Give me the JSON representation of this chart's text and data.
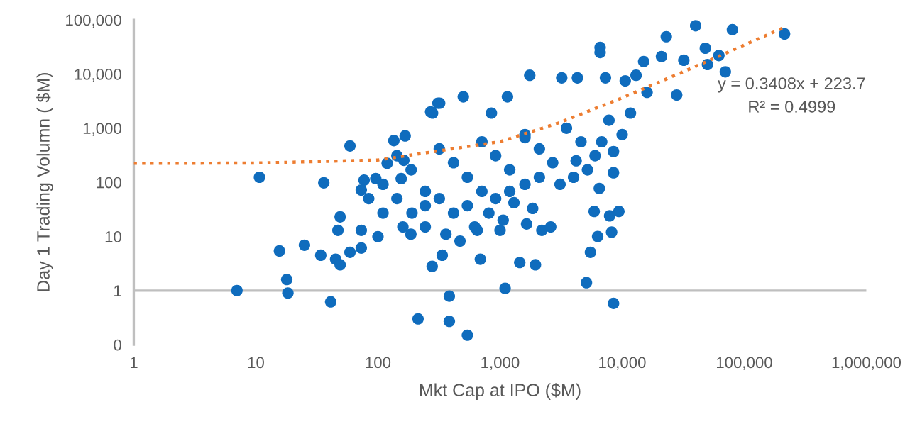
{
  "chart_data": {
    "type": "scatter",
    "xlabel": "Mkt Cap at IPO ($M)",
    "ylabel": "Day 1 Trading Volumn ( $M)",
    "log": "xy",
    "grid": false,
    "legend": false,
    "xlim": [
      1,
      1000000
    ],
    "xticks": [
      1,
      10,
      100,
      {
        "value": 1000,
        "label": "1,000"
      },
      {
        "value": 10000,
        "label": "10,000"
      },
      {
        "value": 100000,
        "label": "100,000"
      },
      {
        "value": 1000000,
        "label": "1,000,000"
      }
    ],
    "ylim": [
      0.1,
      100000
    ],
    "yticks": [
      {
        "value": 0.1,
        "label": "0"
      },
      1,
      10,
      100,
      {
        "value": 1000,
        "label": "1,000"
      },
      {
        "value": 10000,
        "label": "10,000"
      },
      {
        "value": 100000,
        "label": "100,000"
      }
    ],
    "ref_lines": [
      {
        "axis": "y",
        "value": 1,
        "color": "#bfbfbf"
      }
    ],
    "annotations": [
      "y = 0.3408x + 223.7",
      "R² = 0.4999"
    ],
    "series": [
      {
        "color": "#0f6cbd",
        "marker": "circle",
        "x": [
          7.0,
          15.6,
          17.9,
          18.3,
          25,
          34,
          41,
          45,
          49,
          47,
          49,
          59,
          73,
          73,
          100,
          186,
          213,
          278,
          336,
          384,
          384,
          540,
          690,
          1100,
          1450,
          1950,
          5100,
          5500,
          6300,
          8500,
          8200,
          9400,
          7900,
          5900,
          1000,
          1650,
          2200,
          2600,
          470,
          650,
          1850,
          214000,
          80000,
          40000,
          23000,
          48000,
          62000,
          50000,
          70000,
          32000,
          21000,
          15000,
          6600,
          6600,
          28000,
          13000,
          10600,
          7300,
          4300,
          3200,
          1750,
          500,
          320,
          280,
          16000,
          8500,
          8500,
          6500,
          1150,
          850,
          1600,
          4200,
          1300,
          10.7,
          36,
          59,
          135,
          167,
          270,
          310,
          77,
          96,
          73,
          119,
          163,
          155,
          143,
          187,
          244,
          318,
          416,
          540,
          710,
          920,
          1200,
          1600,
          2100,
          2700,
          3500,
          4600,
          6000,
          7800,
          244,
          318,
          416,
          190,
          143,
          110,
          110,
          84,
          540,
          710,
          920,
          1200,
          1600,
          2100,
          3100,
          4000,
          5200,
          6800,
          10000,
          11700,
          160,
          244,
          360,
          620,
          810,
          1060
        ],
        "values": [
          1.0,
          5.4,
          1.6,
          0.9,
          6.9,
          4.5,
          0.62,
          3.8,
          3.0,
          13,
          23,
          5.1,
          6.1,
          13,
          9.9,
          11,
          0.3,
          2.8,
          4.5,
          0.79,
          0.27,
          0.15,
          3.8,
          1.1,
          3.3,
          3.0,
          1.4,
          5.1,
          10,
          0.58,
          12,
          29,
          24,
          29,
          13,
          17,
          13,
          15,
          8.2,
          13,
          33,
          55000,
          66000,
          78000,
          49000,
          30000,
          22000,
          15000,
          11000,
          18000,
          21000,
          17000,
          31000,
          25000,
          4100,
          9500,
          7500,
          8500,
          8500,
          8500,
          9500,
          3800,
          2900,
          1900,
          4600,
          370,
          150,
          77,
          3800,
          1900,
          670,
          250,
          42,
          124,
          98,
          470,
          590,
          720,
          2000,
          2900,
          110,
          117,
          72,
          225,
          255,
          117,
          310,
          170,
          68,
          415,
          230,
          124,
          560,
          310,
          170,
          760,
          415,
          230,
          1000,
          560,
          310,
          1400,
          37,
          50,
          27,
          27,
          50,
          92,
          27,
          50,
          37,
          68,
          50,
          68,
          92,
          124,
          92,
          124,
          170,
          560,
          760,
          1900,
          15,
          15,
          11,
          15,
          27,
          20
        ]
      },
      {
        "type": "line",
        "color": "#ed7d31",
        "line_style": "dotted",
        "marker": "none",
        "x": [
          1,
          10,
          100,
          1000,
          3000,
          10000,
          30000,
          100000,
          214000
        ],
        "values": [
          224,
          227,
          258,
          564,
          1246,
          3632,
          10448,
          34304,
          73155
        ]
      }
    ]
  }
}
